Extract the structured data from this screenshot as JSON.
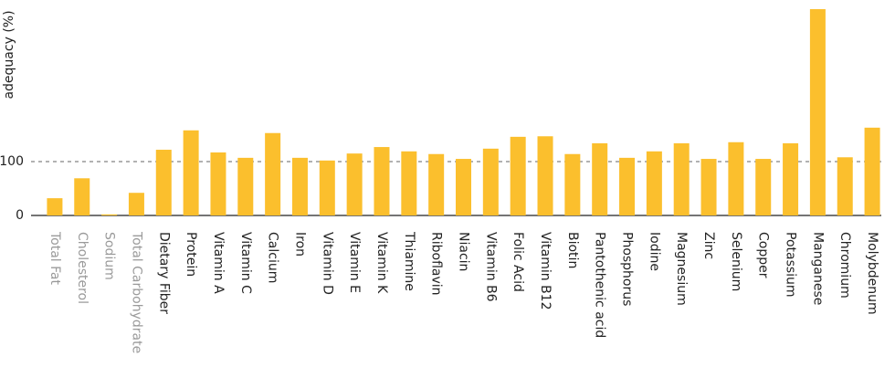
{
  "chart_data": {
    "type": "bar",
    "y_label": "adequacy (%)",
    "categories": [
      "Total Fat",
      "Cholesterol",
      "Sodium",
      "Total Carbohydrate",
      "Dietary Fiber",
      "Protein",
      "Vitamin A",
      "Vitamin C",
      "Calcium",
      "Iron",
      "Vitamin D",
      "Vitamin E",
      "Vitamin K",
      "Thiamine",
      "Riboflavin",
      "Niacin",
      "Vitamin B6",
      "Folic Acid",
      "Vitamin B12",
      "Biotin",
      "Pantothenic acid",
      "Phosphorus",
      "Iodine",
      "Magnesium",
      "Zinc",
      "Selenium",
      "Copper",
      "Potassium",
      "Manganese",
      "Chromium",
      "Molybdenum"
    ],
    "values": [
      32,
      69,
      2,
      42,
      122,
      158,
      117,
      107,
      153,
      107,
      102,
      115,
      127,
      119,
      114,
      105,
      124,
      146,
      147,
      114,
      134,
      107,
      119,
      134,
      105,
      136,
      105,
      134,
      383,
      108,
      163
    ],
    "color": "#fbbf2d",
    "category_label_colors": [
      "#9a9a9a",
      "#9a9a9a",
      "#9a9a9a",
      "#9a9a9a",
      "#222222",
      "#222222",
      "#222222",
      "#222222",
      "#222222",
      "#222222",
      "#222222",
      "#222222",
      "#222222",
      "#222222",
      "#222222",
      "#222222",
      "#222222",
      "#222222",
      "#222222",
      "#222222",
      "#222222",
      "#222222",
      "#222222",
      "#222222",
      "#222222",
      "#222222",
      "#222222",
      "#222222",
      "#222222",
      "#222222",
      "#222222"
    ],
    "ylim": [
      0,
      390
    ],
    "yticks": [
      0,
      100
    ],
    "grid": "dashed"
  }
}
